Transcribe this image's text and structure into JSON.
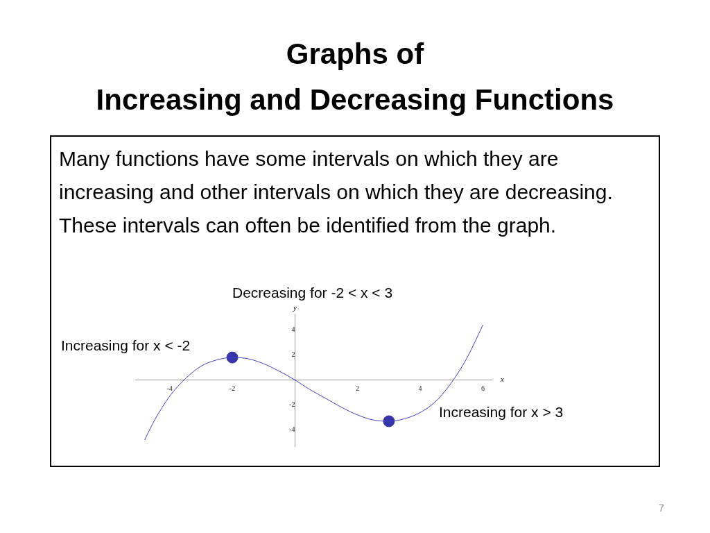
{
  "chart_data": {
    "type": "line",
    "title": "Graphs of\nIncreasing and Decreasing Functions",
    "annotations": [
      "Many functions have some intervals on which they are increasing and other intervals on which they are decreasing. These intervals can often be identified from the graph.",
      "Decreasing for -2 < x < 3",
      "Increasing for x < -2",
      "Increasing for x > 3",
      "7"
    ],
    "xlabel": "x",
    "ylabel": "y",
    "xlim": [
      -5.1,
      6.3
    ],
    "ylim": [
      -5.3,
      5.3
    ],
    "xticks": [
      -4,
      -2,
      2,
      4,
      6
    ],
    "yticks": [
      -4,
      -2,
      2,
      4
    ],
    "grid": false,
    "legend": false,
    "series": [
      {
        "color": "#4040d0",
        "marker": "none",
        "line_style": "solid",
        "x": [
          -4.8,
          -4.5,
          -4,
          -3.5,
          -3,
          -2.5,
          -2,
          -1.5,
          -1,
          -0.5,
          0,
          0.5,
          1,
          1.5,
          2,
          2.5,
          3,
          3.5,
          4,
          4.5,
          5,
          5.5,
          6
        ],
        "values": [
          -4.8,
          -3.3,
          -1.3,
          0.1,
          1.1,
          1.6,
          1.8,
          1.7,
          1.3,
          0.7,
          0,
          -0.8,
          -1.5,
          -2.2,
          -2.8,
          -3.2,
          -3.3,
          -3.1,
          -2.6,
          -1.7,
          -0.2,
          1.8,
          4.4
        ]
      },
      {
        "type": "scatter",
        "color": "#3535a8",
        "marker": "circle",
        "x": [
          -2,
          3
        ],
        "values": [
          1.8,
          -3.3
        ]
      }
    ]
  }
}
